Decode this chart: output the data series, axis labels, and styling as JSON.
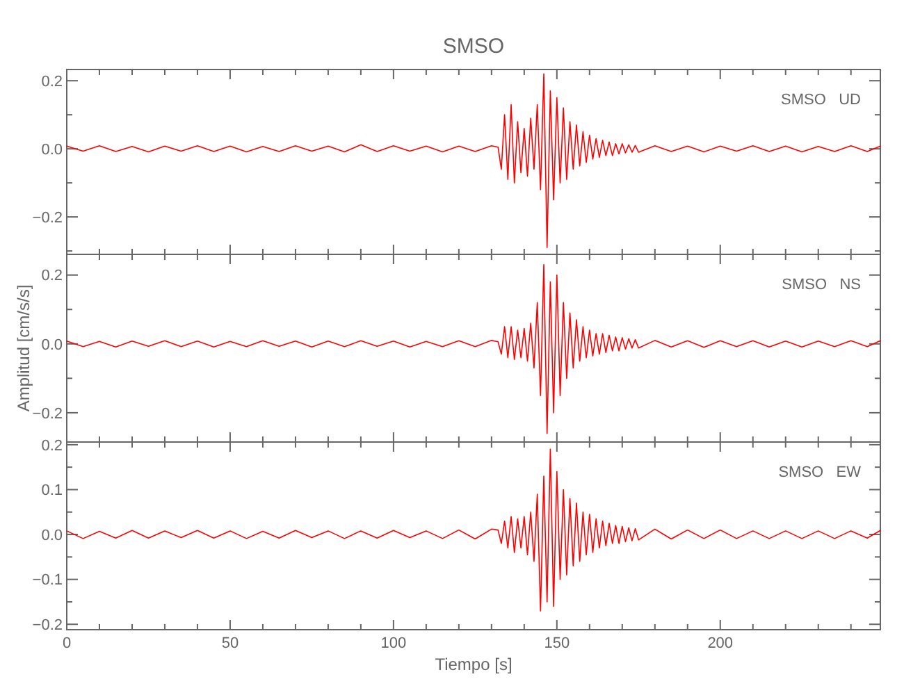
{
  "chart_data": [
    {
      "type": "line",
      "title": "SMSO",
      "annotations": [
        "SMSO   UD"
      ],
      "tick_labels": "y",
      "xlim": [
        0,
        249
      ],
      "ylim": [
        -0.31,
        0.233
      ],
      "xticks": [
        0,
        {
          "value": 10,
          "label": null
        },
        {
          "value": 20,
          "label": null
        },
        {
          "value": 30,
          "label": null
        },
        {
          "value": 40,
          "label": null
        },
        50,
        {
          "value": 60,
          "label": null
        },
        {
          "value": 70,
          "label": null
        },
        {
          "value": 80,
          "label": null
        },
        {
          "value": 90,
          "label": null
        },
        100,
        {
          "value": 110,
          "label": null
        },
        {
          "value": 120,
          "label": null
        },
        {
          "value": 130,
          "label": null
        },
        {
          "value": 140,
          "label": null
        },
        150,
        {
          "value": 160,
          "label": null
        },
        {
          "value": 170,
          "label": null
        },
        {
          "value": 180,
          "label": null
        },
        {
          "value": 190,
          "label": null
        },
        200,
        {
          "value": 210,
          "label": null
        },
        {
          "value": 220,
          "label": null
        },
        {
          "value": 230,
          "label": null
        },
        {
          "value": 240,
          "label": null
        }
      ],
      "yticks": [
        {
          "value": -0.3,
          "label": null
        },
        {
          "value": -0.2,
          "label": "−0.2"
        },
        {
          "value": -0.1,
          "label": null
        },
        {
          "value": 0,
          "label": "0.0"
        },
        {
          "value": 0.1,
          "label": null
        },
        {
          "value": 0.2,
          "label": "0.2"
        }
      ],
      "color": "#ff0000",
      "x": [
        0,
        5,
        10,
        15,
        20,
        25,
        30,
        35,
        40,
        45,
        50,
        55,
        60,
        65,
        70,
        75,
        80,
        85,
        90,
        95,
        100,
        105,
        110,
        115,
        120,
        125,
        130,
        132,
        133,
        134,
        135,
        136,
        137,
        138,
        139,
        140,
        141,
        142,
        143,
        144,
        145,
        146,
        147,
        148,
        149,
        150,
        151,
        152,
        153,
        154,
        155,
        156,
        157,
        158,
        159,
        160,
        161,
        162,
        163,
        164,
        165,
        166,
        167,
        168,
        169,
        170,
        171,
        172,
        173,
        174,
        175,
        180,
        185,
        190,
        195,
        200,
        205,
        210,
        215,
        220,
        225,
        230,
        235,
        240,
        245,
        249
      ],
      "values": [
        0.008,
        -0.007,
        0.009,
        -0.008,
        0.007,
        -0.009,
        0.008,
        -0.007,
        0.009,
        -0.008,
        0.008,
        -0.009,
        0.007,
        -0.008,
        0.009,
        -0.007,
        0.008,
        -0.009,
        0.012,
        -0.008,
        0.009,
        -0.007,
        0.008,
        -0.009,
        0.008,
        -0.008,
        0.009,
        0.005,
        -0.06,
        0.1,
        -0.09,
        0.13,
        -0.1,
        0.08,
        -0.07,
        0.06,
        -0.08,
        0.09,
        -0.06,
        0.13,
        -0.12,
        0.22,
        -0.29,
        0.17,
        -0.15,
        0.15,
        -0.1,
        0.12,
        -0.09,
        0.08,
        -0.06,
        0.07,
        -0.05,
        0.05,
        -0.04,
        0.04,
        -0.03,
        0.03,
        -0.025,
        0.025,
        -0.02,
        0.02,
        -0.02,
        0.015,
        -0.015,
        0.015,
        -0.012,
        0.012,
        -0.01,
        0.01,
        -0.01,
        0.009,
        -0.008,
        0.008,
        -0.009,
        0.008,
        -0.007,
        0.009,
        -0.008,
        0.008,
        -0.009,
        0.007,
        -0.008,
        0.009,
        -0.008,
        0.008
      ]
    },
    {
      "type": "line",
      "ylabel": "Amplitud [cm/s/s]",
      "annotations": [
        "SMSO   NS"
      ],
      "tick_labels": "y",
      "xlim": [
        0,
        249
      ],
      "ylim": [
        -0.285,
        0.26
      ],
      "xticks": [
        0,
        {
          "value": 10,
          "label": null
        },
        {
          "value": 20,
          "label": null
        },
        {
          "value": 30,
          "label": null
        },
        {
          "value": 40,
          "label": null
        },
        50,
        {
          "value": 60,
          "label": null
        },
        {
          "value": 70,
          "label": null
        },
        {
          "value": 80,
          "label": null
        },
        {
          "value": 90,
          "label": null
        },
        100,
        {
          "value": 110,
          "label": null
        },
        {
          "value": 120,
          "label": null
        },
        {
          "value": 130,
          "label": null
        },
        {
          "value": 140,
          "label": null
        },
        150,
        {
          "value": 160,
          "label": null
        },
        {
          "value": 170,
          "label": null
        },
        {
          "value": 180,
          "label": null
        },
        {
          "value": 190,
          "label": null
        },
        200,
        {
          "value": 210,
          "label": null
        },
        {
          "value": 220,
          "label": null
        },
        {
          "value": 230,
          "label": null
        },
        {
          "value": 240,
          "label": null
        }
      ],
      "yticks": [
        {
          "value": -0.2,
          "label": "−0.2"
        },
        {
          "value": -0.1,
          "label": null
        },
        {
          "value": 0,
          "label": "0.0"
        },
        {
          "value": 0.1,
          "label": null
        },
        {
          "value": 0.2,
          "label": "0.2"
        }
      ],
      "color": "#ff0000",
      "x": [
        0,
        5,
        10,
        15,
        20,
        25,
        30,
        35,
        40,
        45,
        50,
        55,
        60,
        65,
        70,
        75,
        80,
        85,
        90,
        95,
        100,
        105,
        110,
        115,
        120,
        125,
        130,
        132,
        133,
        134,
        135,
        136,
        137,
        138,
        139,
        140,
        141,
        142,
        143,
        144,
        145,
        146,
        147,
        148,
        149,
        150,
        151,
        152,
        153,
        154,
        155,
        156,
        157,
        158,
        159,
        160,
        161,
        162,
        163,
        164,
        165,
        166,
        167,
        168,
        169,
        170,
        171,
        172,
        173,
        174,
        175,
        180,
        185,
        190,
        195,
        200,
        205,
        210,
        215,
        220,
        225,
        230,
        235,
        240,
        245,
        249
      ],
      "values": [
        0.008,
        -0.008,
        0.007,
        -0.009,
        0.008,
        -0.007,
        0.009,
        -0.008,
        0.008,
        -0.009,
        0.007,
        -0.008,
        0.009,
        -0.007,
        0.008,
        -0.009,
        0.008,
        -0.008,
        0.009,
        -0.007,
        0.008,
        -0.009,
        0.007,
        -0.008,
        0.009,
        -0.008,
        0.01,
        0.006,
        -0.03,
        0.05,
        -0.04,
        0.05,
        -0.045,
        0.04,
        -0.04,
        0.045,
        -0.05,
        0.06,
        -0.07,
        0.12,
        -0.15,
        0.23,
        -0.26,
        0.18,
        -0.2,
        0.2,
        -0.15,
        0.12,
        -0.1,
        0.09,
        -0.07,
        0.07,
        -0.05,
        0.05,
        -0.04,
        0.04,
        -0.035,
        0.03,
        -0.03,
        0.03,
        -0.025,
        0.025,
        -0.02,
        0.02,
        -0.02,
        0.018,
        -0.015,
        0.015,
        -0.012,
        0.012,
        -0.012,
        0.01,
        -0.009,
        0.009,
        -0.01,
        0.009,
        -0.008,
        0.009,
        -0.009,
        0.008,
        -0.009,
        0.008,
        -0.008,
        0.009,
        -0.008,
        0.009
      ]
    },
    {
      "type": "line",
      "xlabel": "Tiempo [s]",
      "annotations": [
        "SMSO   EW"
      ],
      "xlim": [
        0,
        249
      ],
      "ylim": [
        -0.212,
        0.206
      ],
      "xticks": [
        0,
        {
          "value": 10,
          "label": null
        },
        {
          "value": 20,
          "label": null
        },
        {
          "value": 30,
          "label": null
        },
        {
          "value": 40,
          "label": null
        },
        50,
        {
          "value": 60,
          "label": null
        },
        {
          "value": 70,
          "label": null
        },
        {
          "value": 80,
          "label": null
        },
        {
          "value": 90,
          "label": null
        },
        100,
        {
          "value": 110,
          "label": null
        },
        {
          "value": 120,
          "label": null
        },
        {
          "value": 130,
          "label": null
        },
        {
          "value": 140,
          "label": null
        },
        150,
        {
          "value": 160,
          "label": null
        },
        {
          "value": 170,
          "label": null
        },
        {
          "value": 180,
          "label": null
        },
        {
          "value": 190,
          "label": null
        },
        200,
        {
          "value": 210,
          "label": null
        },
        {
          "value": 220,
          "label": null
        },
        {
          "value": 230,
          "label": null
        },
        {
          "value": 240,
          "label": null
        }
      ],
      "yticks": [
        {
          "value": -0.2,
          "label": "−0.2"
        },
        {
          "value": -0.15,
          "label": null
        },
        {
          "value": -0.1,
          "label": "−0.1"
        },
        {
          "value": -0.05,
          "label": null
        },
        {
          "value": 0,
          "label": "0.0"
        },
        {
          "value": 0.05,
          "label": null
        },
        {
          "value": 0.1,
          "label": "0.1"
        },
        {
          "value": 0.15,
          "label": null
        },
        {
          "value": 0.2,
          "label": "0.2"
        }
      ],
      "color": "#ff0000",
      "x": [
        0,
        5,
        10,
        15,
        20,
        25,
        30,
        35,
        40,
        45,
        50,
        55,
        60,
        65,
        70,
        75,
        80,
        85,
        90,
        95,
        100,
        105,
        110,
        115,
        120,
        125,
        130,
        132,
        133,
        134,
        135,
        136,
        137,
        138,
        139,
        140,
        141,
        142,
        143,
        144,
        145,
        146,
        147,
        148,
        149,
        150,
        151,
        152,
        153,
        154,
        155,
        156,
        157,
        158,
        159,
        160,
        161,
        162,
        163,
        164,
        165,
        166,
        167,
        168,
        169,
        170,
        171,
        172,
        173,
        174,
        175,
        180,
        185,
        190,
        195,
        200,
        205,
        210,
        215,
        220,
        225,
        230,
        235,
        240,
        245,
        249
      ],
      "values": [
        0.008,
        -0.009,
        0.007,
        -0.008,
        0.009,
        -0.008,
        0.008,
        -0.007,
        0.009,
        -0.008,
        0.008,
        -0.009,
        0.007,
        -0.008,
        0.009,
        -0.007,
        0.008,
        -0.009,
        0.008,
        -0.008,
        0.009,
        -0.007,
        0.008,
        -0.009,
        0.01,
        -0.01,
        0.012,
        0.01,
        -0.02,
        0.03,
        -0.03,
        0.04,
        -0.04,
        0.035,
        -0.03,
        0.04,
        -0.045,
        0.05,
        -0.06,
        0.09,
        -0.17,
        0.13,
        -0.15,
        0.19,
        -0.16,
        0.14,
        -0.1,
        0.1,
        -0.09,
        0.08,
        -0.07,
        0.07,
        -0.06,
        0.05,
        -0.045,
        0.045,
        -0.04,
        0.035,
        -0.03,
        0.03,
        -0.025,
        0.025,
        -0.02,
        0.02,
        -0.02,
        0.018,
        -0.016,
        0.015,
        -0.014,
        0.013,
        -0.012,
        0.012,
        -0.01,
        0.01,
        -0.009,
        0.01,
        -0.009,
        0.008,
        -0.009,
        0.008,
        -0.009,
        0.008,
        -0.009,
        0.008,
        -0.008,
        0.009
      ]
    }
  ]
}
